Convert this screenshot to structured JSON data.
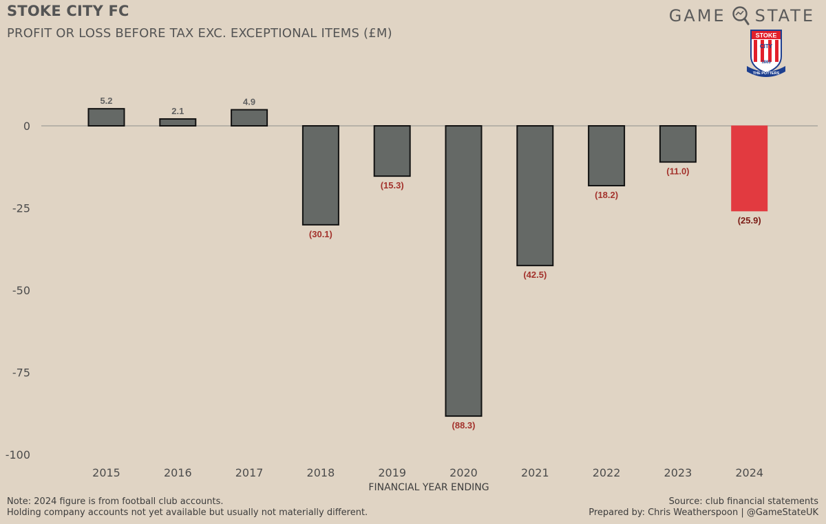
{
  "header": {
    "title": "STOKE CITY FC",
    "subtitle": "PROFIT OR LOSS BEFORE TAX EXC. EXCEPTIONAL ITEMS (£M)",
    "brand_left": "GAME",
    "brand_right": "STATE",
    "brand_icon": "magnifier-icon",
    "crest": {
      "icon": "stoke-city-crest",
      "top_text": "STOKE",
      "mid_text": "CITY",
      "year": "1863",
      "ribbon": "THE POTTERS"
    }
  },
  "chart_data": {
    "type": "bar",
    "title": "PROFIT OR LOSS BEFORE TAX EXC. EXCEPTIONAL ITEMS (£M)",
    "xlabel": "FINANCIAL YEAR ENDING",
    "ylabel": "",
    "categories": [
      "2015",
      "2016",
      "2017",
      "2018",
      "2019",
      "2020",
      "2021",
      "2022",
      "2023",
      "2024"
    ],
    "values": [
      5.2,
      2.1,
      4.9,
      -30.1,
      -15.3,
      -88.3,
      -42.5,
      -18.2,
      -11.0,
      -25.9
    ],
    "data_labels": [
      "5.2",
      "2.1",
      "4.9",
      "(30.1)",
      "(15.3)",
      "(88.3)",
      "(42.5)",
      "(18.2)",
      "(11.0)",
      "(25.9)"
    ],
    "highlight_category": "2024",
    "ylim": [
      -100,
      10
    ],
    "yticks": [
      0,
      -25,
      -50,
      -75,
      -100
    ],
    "ytick_labels": [
      "0",
      "-25",
      "-50",
      "-75",
      "-100"
    ],
    "grid": false,
    "colors": {
      "bar": "#656966",
      "highlight": "#e23a40",
      "positive_label": "#616161",
      "negative_label": "#a3322c",
      "highlight_label": "#7a1a14",
      "zero_line": "#a9a59f"
    }
  },
  "footer": {
    "note_line1": "Note: 2024 figure is from football club accounts.",
    "note_line2": "Holding company accounts not yet available but usually not materially different.",
    "source": "Source: club financial statements",
    "credit": "Prepared by: Chris Weatherspoon | @GameStateUK"
  }
}
